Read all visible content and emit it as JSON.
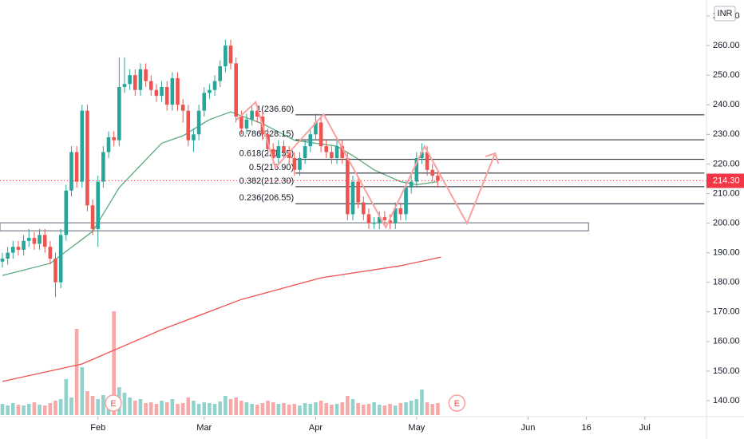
{
  "chart_data": {
    "type": "candlestick",
    "currency": "INR",
    "xlim": [
      -0.45,
      132.6
    ],
    "ylim": [
      134.6,
      275.4
    ],
    "xticks": [
      {
        "value": 18,
        "label": "Feb"
      },
      {
        "value": 38,
        "label": "Mar"
      },
      {
        "value": 59,
        "label": "Apr"
      },
      {
        "value": 78,
        "label": "May"
      },
      {
        "value": 99,
        "label": "Jun"
      },
      {
        "value": 110,
        "label": "16"
      },
      {
        "value": 121,
        "label": "Jul"
      }
    ],
    "yticks": [
      {
        "value": 140,
        "label": "140.00"
      },
      {
        "value": 150,
        "label": "150.00"
      },
      {
        "value": 160,
        "label": "160.00"
      },
      {
        "value": 170,
        "label": "170.00"
      },
      {
        "value": 180,
        "label": "180.00"
      },
      {
        "value": 190,
        "label": "190.00"
      },
      {
        "value": 200,
        "label": "200.00"
      },
      {
        "value": 210,
        "label": "210.00"
      },
      {
        "value": 220,
        "label": "220.00"
      },
      {
        "value": 230,
        "label": "230.00"
      },
      {
        "value": 240,
        "label": "240.00"
      },
      {
        "value": 250,
        "label": "250.00"
      },
      {
        "value": 260,
        "label": "260.00"
      },
      {
        "value": 270,
        "label": "270.00"
      }
    ],
    "up_color": "#26a69a",
    "down_color": "#ef5350",
    "open": [
      187,
      188,
      190,
      192,
      191,
      194,
      195,
      193,
      196,
      192,
      188,
      180,
      196,
      211,
      224,
      214,
      238,
      206,
      198,
      214,
      224,
      229,
      228,
      246,
      247,
      250,
      245,
      252,
      248,
      245,
      243,
      246,
      240,
      249,
      240,
      238,
      228,
      230,
      238,
      244,
      245,
      248,
      253,
      260,
      254,
      236,
      232,
      235,
      238,
      236,
      230,
      225,
      222,
      226,
      224,
      222,
      218,
      222,
      226,
      230,
      234,
      226,
      224,
      222,
      226,
      222,
      203,
      214,
      207,
      203,
      200,
      200,
      202,
      201,
      200,
      205,
      203,
      212,
      214,
      222,
      224,
      218,
      216
    ],
    "high": [
      190,
      192,
      194,
      194,
      196,
      198,
      197,
      198,
      198,
      194,
      190,
      198,
      213,
      226,
      226,
      240,
      240,
      208,
      216,
      226,
      231,
      231,
      256,
      256,
      252,
      252,
      254,
      254,
      250,
      247,
      248,
      248,
      251,
      251,
      242,
      240,
      232,
      240,
      246,
      247,
      250,
      255,
      262,
      262,
      256,
      238,
      237,
      240,
      240,
      238,
      232,
      227,
      228,
      228,
      226,
      224,
      224,
      228,
      232,
      237,
      236,
      228,
      226,
      228,
      228,
      224,
      216,
      216,
      209,
      205,
      202,
      204,
      204,
      203,
      207,
      207,
      214,
      216,
      224,
      227,
      226,
      220,
      218
    ],
    "low": [
      185,
      186,
      188,
      189,
      189,
      192,
      191,
      191,
      190,
      186,
      175,
      178,
      194,
      209,
      212,
      212,
      204,
      196,
      192,
      212,
      222,
      226,
      226,
      244,
      245,
      243,
      243,
      246,
      243,
      241,
      241,
      238,
      238,
      238,
      234,
      226,
      224,
      228,
      236,
      242,
      243,
      246,
      251,
      252,
      234,
      230,
      230,
      233,
      234,
      228,
      223,
      220,
      220,
      222,
      220,
      216,
      216,
      220,
      224,
      228,
      224,
      222,
      220,
      220,
      220,
      201,
      201,
      205,
      201,
      198,
      198,
      198,
      199,
      198,
      198,
      201,
      201,
      210,
      212,
      220,
      216,
      214,
      212
    ],
    "close": [
      188,
      190,
      192,
      191,
      194,
      195,
      193,
      196,
      192,
      188,
      180,
      196,
      211,
      224,
      214,
      238,
      206,
      198,
      214,
      224,
      229,
      228,
      246,
      247,
      250,
      245,
      252,
      248,
      245,
      243,
      246,
      240,
      249,
      240,
      238,
      228,
      230,
      238,
      244,
      245,
      248,
      253,
      260,
      254,
      236,
      232,
      235,
      238,
      236,
      230,
      225,
      222,
      226,
      224,
      222,
      218,
      222,
      226,
      230,
      234,
      226,
      224,
      222,
      226,
      222,
      203,
      214,
      207,
      203,
      200,
      200,
      202,
      201,
      200,
      205,
      203,
      212,
      214,
      222,
      224,
      218,
      216,
      214.3
    ],
    "volume": [
      14,
      12,
      15,
      13,
      12,
      14,
      16,
      13,
      12,
      15,
      18,
      20,
      45,
      22,
      108,
      60,
      30,
      24,
      20,
      25,
      18,
      130,
      35,
      28,
      22,
      18,
      20,
      15,
      16,
      14,
      18,
      16,
      20,
      14,
      15,
      22,
      18,
      14,
      16,
      15,
      14,
      17,
      24,
      20,
      22,
      18,
      16,
      14,
      13,
      15,
      18,
      16,
      14,
      15,
      13,
      14,
      12,
      15,
      14,
      16,
      18,
      15,
      13,
      14,
      16,
      24,
      20,
      15,
      13,
      14,
      16,
      13,
      12,
      14,
      12,
      15,
      16,
      18,
      20,
      32,
      16,
      14,
      15
    ],
    "volume_ylim": [
      0,
      165
    ],
    "ma_fast": {
      "color": "#5ba97b",
      "x": [
        0,
        9,
        15,
        17,
        22,
        30,
        34,
        39,
        43,
        49,
        55,
        63,
        66,
        70,
        75,
        78,
        82
      ],
      "values": [
        182.3,
        186.4,
        194.5,
        197.2,
        212,
        227,
        229.5,
        235,
        237.6,
        233.6,
        228,
        226,
        222.8,
        218,
        214,
        213,
        214
      ]
    },
    "ma_slow": {
      "color": "#f0524f",
      "x": [
        0,
        15,
        30,
        45,
        60,
        75,
        82.6
      ],
      "values": [
        146.5,
        152.4,
        164,
        174.2,
        181.5,
        185.6,
        188.5
      ]
    },
    "fib": {
      "x": [
        55.2,
        132.2
      ],
      "color": "#131722",
      "levels": [
        {
          "label": "1(236.60)",
          "value": 236.6
        },
        {
          "label": "0.786(228.15)",
          "value": 228.15
        },
        {
          "label": "0.618(221.55)",
          "value": 221.55
        },
        {
          "label": "0.5(216.90)",
          "value": 216.9
        },
        {
          "label": "0.382(212.30)",
          "value": 212.3
        },
        {
          "label": "0.236(206.55)",
          "value": 206.55
        }
      ]
    },
    "zone": {
      "color": "#9598a1",
      "x": [
        -0.45,
        110.4
      ],
      "y": [
        197.4,
        200.1
      ]
    },
    "projection": {
      "color": "#f7a1a1",
      "x": [
        44.1,
        47.7,
        51.4,
        60.5,
        72.2,
        79.5,
        87.5,
        92.8
      ],
      "values": [
        234.9,
        240.9,
        218.7,
        236.8,
        198.5,
        226,
        199.9,
        223.6
      ]
    },
    "events": [
      {
        "x": 20.9,
        "label": "E"
      },
      {
        "x": 85.6,
        "label": "E"
      }
    ],
    "last_price": {
      "value": 214.3,
      "label": "214.30",
      "color": "#f23645"
    }
  }
}
